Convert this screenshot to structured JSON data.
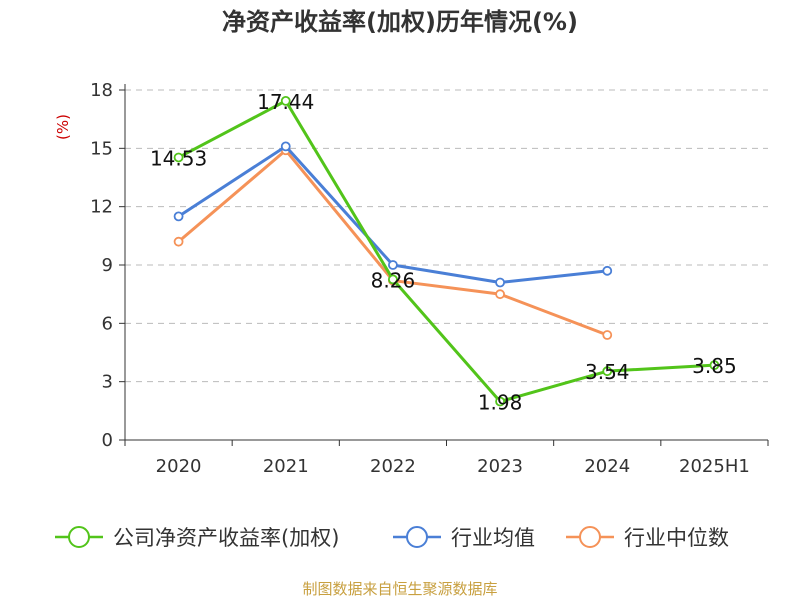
{
  "chart_data": {
    "type": "line",
    "title": "净资产收益率(加权)历年情况(%)",
    "ylabel": "(%)",
    "xlabel": "",
    "categories": [
      "2020",
      "2021",
      "2022",
      "2023",
      "2024",
      "2025H1"
    ],
    "ylim": [
      0,
      18
    ],
    "yticks": [
      0,
      3,
      6,
      9,
      12,
      15,
      18
    ],
    "grid": true,
    "legend_position": "bottom",
    "series": [
      {
        "name": "公司净资产收益率(加权)",
        "color": "#52c41a",
        "values": [
          14.53,
          17.44,
          8.26,
          1.98,
          3.54,
          3.85
        ],
        "labels": [
          "14.53",
          "17.44",
          "8.26",
          "1.98",
          "3.54",
          "3.85"
        ]
      },
      {
        "name": "行业均值",
        "color": "#4a7fd6",
        "values": [
          11.5,
          15.1,
          9.0,
          8.1,
          8.7,
          null
        ]
      },
      {
        "name": "行业中位数",
        "color": "#f59258",
        "values": [
          10.2,
          14.9,
          8.2,
          7.5,
          5.4,
          null
        ]
      }
    ]
  },
  "footer": "制图数据来自恒生聚源数据库"
}
